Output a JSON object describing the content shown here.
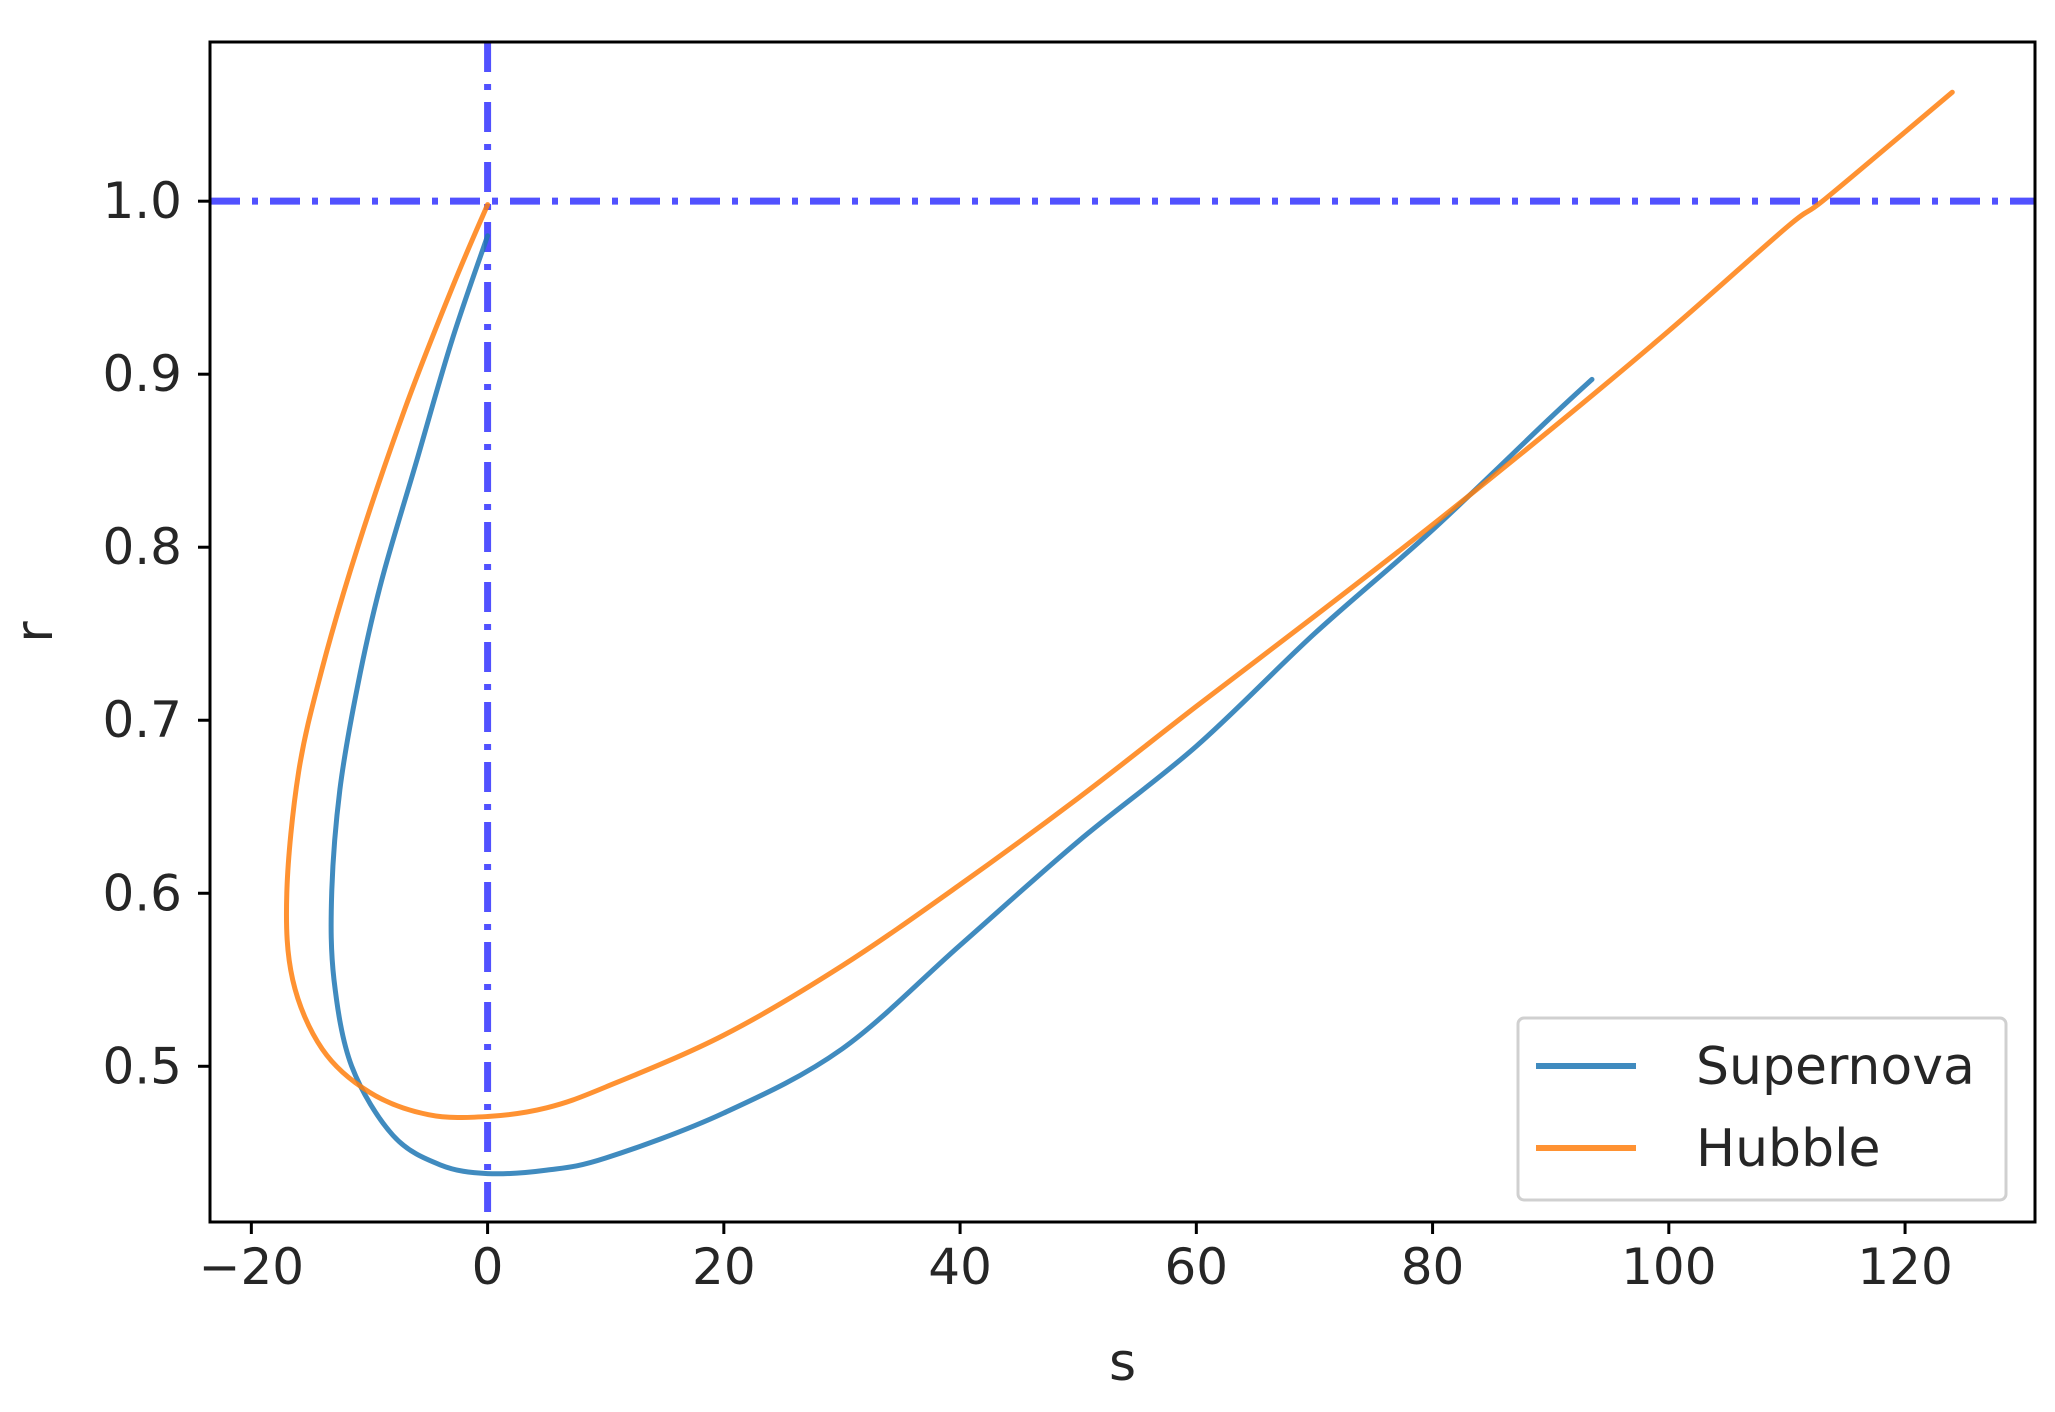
{
  "chart_data": {
    "type": "line",
    "title": "",
    "xlabel": "s",
    "ylabel": "r",
    "xlim": [
      -23.5,
      131
    ],
    "ylim": [
      0.41,
      1.092
    ],
    "x_ticks": [
      -20,
      0,
      20,
      40,
      60,
      80,
      100,
      120
    ],
    "x_tick_labels": [
      "−20",
      "0",
      "20",
      "40",
      "60",
      "80",
      "100",
      "120"
    ],
    "y_ticks": [
      0.5,
      0.6,
      0.7,
      0.8,
      0.9,
      1.0
    ],
    "y_tick_labels": [
      "0.5",
      "0.6",
      "0.7",
      "0.8",
      "0.9",
      "1.0"
    ],
    "grid": false,
    "legend_position": "bottom-right",
    "reference_lines": [
      {
        "orientation": "vertical",
        "value": 0,
        "color": "#3333ff",
        "style": "dash-dot"
      },
      {
        "orientation": "horizontal",
        "value": 1.0,
        "color": "#3333ff",
        "style": "dash-dot"
      }
    ],
    "series": [
      {
        "name": "Supernova",
        "color": "#1f77b4",
        "points": [
          [
            0,
            0.98
          ],
          [
            -3,
            0.92
          ],
          [
            -6,
            0.85
          ],
          [
            -9,
            0.78
          ],
          [
            -11,
            0.72
          ],
          [
            -12.5,
            0.66
          ],
          [
            -13.2,
            0.6
          ],
          [
            -13,
            0.55
          ],
          [
            -11.5,
            0.5
          ],
          [
            -8,
            0.46
          ],
          [
            -4,
            0.443
          ],
          [
            0,
            0.438
          ],
          [
            5,
            0.44
          ],
          [
            10,
            0.447
          ],
          [
            20,
            0.473
          ],
          [
            30,
            0.51
          ],
          [
            40,
            0.57
          ],
          [
            50,
            0.63
          ],
          [
            60,
            0.685
          ],
          [
            70,
            0.75
          ],
          [
            80,
            0.81
          ],
          [
            90,
            0.875
          ],
          [
            93.5,
            0.897
          ]
        ]
      },
      {
        "name": "Hubble",
        "color": "#ff7f0e",
        "points": [
          [
            0,
            0.998
          ],
          [
            -3,
            0.95
          ],
          [
            -7,
            0.88
          ],
          [
            -11,
            0.8
          ],
          [
            -14,
            0.73
          ],
          [
            -16,
            0.67
          ],
          [
            -17,
            0.6
          ],
          [
            -16.5,
            0.55
          ],
          [
            -14,
            0.51
          ],
          [
            -10,
            0.485
          ],
          [
            -5,
            0.472
          ],
          [
            0,
            0.471
          ],
          [
            5,
            0.476
          ],
          [
            10,
            0.488
          ],
          [
            20,
            0.518
          ],
          [
            30,
            0.558
          ],
          [
            40,
            0.605
          ],
          [
            50,
            0.655
          ],
          [
            60,
            0.708
          ],
          [
            70,
            0.76
          ],
          [
            80,
            0.813
          ],
          [
            90,
            0.868
          ],
          [
            100,
            0.925
          ],
          [
            110,
            0.985
          ],
          [
            113,
            1.0
          ],
          [
            120,
            1.04
          ],
          [
            124,
            1.063
          ]
        ]
      }
    ]
  }
}
